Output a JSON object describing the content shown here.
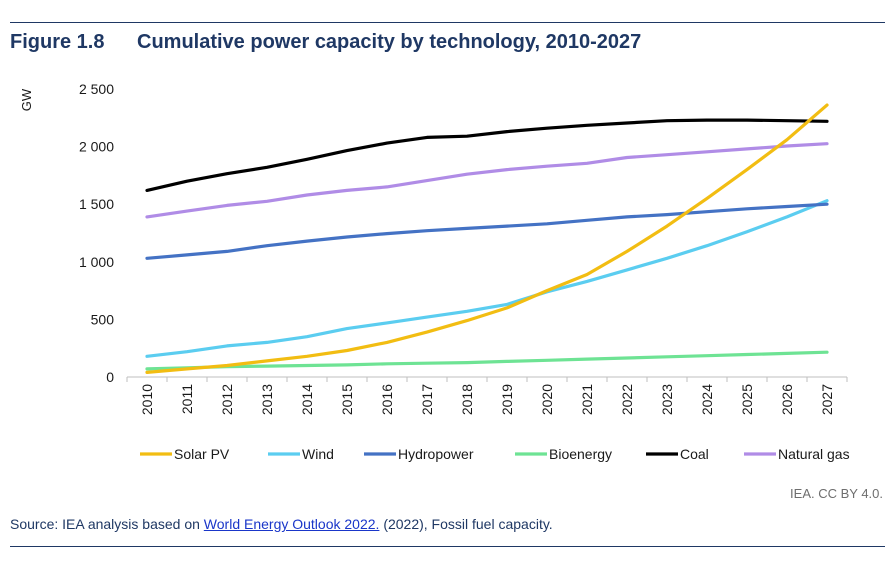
{
  "figure": {
    "number": "Figure 1.8",
    "title": "Cumulative power capacity by technology, 2010-2027"
  },
  "credit": "IEA. CC BY 4.0.",
  "source": {
    "prefix": "Source: IEA analysis based on",
    "link_text": "World Energy Outlook 2022.",
    "suffix": "(2022), Fossil fuel capacity."
  },
  "chart_data": {
    "type": "line",
    "title": "Cumulative power capacity by technology, 2010-2027",
    "xlabel": "",
    "ylabel": "GW",
    "ylim": [
      0,
      2500
    ],
    "yticks": [
      0,
      500,
      1000,
      1500,
      2000,
      2500
    ],
    "ytick_labels": [
      "0",
      "500",
      "1 000",
      "1 500",
      "2 000",
      "2 500"
    ],
    "grid": false,
    "legend_position": "bottom",
    "x": [
      "2010",
      "2011",
      "2012",
      "2013",
      "2014",
      "2015",
      "2016",
      "2017",
      "2018",
      "2019",
      "2020",
      "2021",
      "2022",
      "2023",
      "2024",
      "2025",
      "2026",
      "2027"
    ],
    "series": [
      {
        "name": "Solar PV",
        "color": "#f2bd12",
        "values": [
          40,
          70,
          100,
          140,
          180,
          230,
          300,
          390,
          490,
          600,
          750,
          890,
          1090,
          1310,
          1550,
          1800,
          2060,
          2360
        ]
      },
      {
        "name": "Wind",
        "color": "#5bcdf0",
        "values": [
          180,
          220,
          270,
          300,
          350,
          420,
          470,
          520,
          570,
          630,
          740,
          830,
          930,
          1030,
          1140,
          1260,
          1390,
          1530
        ]
      },
      {
        "name": "Hydropower",
        "color": "#4472c4",
        "values": [
          1030,
          1060,
          1090,
          1140,
          1180,
          1215,
          1245,
          1270,
          1290,
          1310,
          1330,
          1360,
          1390,
          1410,
          1435,
          1460,
          1480,
          1500
        ]
      },
      {
        "name": "Bioenergy",
        "color": "#6ee394",
        "values": [
          70,
          80,
          90,
          95,
          100,
          105,
          115,
          120,
          125,
          135,
          145,
          155,
          165,
          175,
          185,
          195,
          205,
          215
        ]
      },
      {
        "name": "Coal",
        "color": "#000000",
        "values": [
          1620,
          1700,
          1765,
          1820,
          1890,
          1965,
          2030,
          2080,
          2090,
          2130,
          2160,
          2185,
          2205,
          2225,
          2230,
          2230,
          2225,
          2220
        ]
      },
      {
        "name": "Natural gas",
        "color": "#b08ce6",
        "values": [
          1390,
          1440,
          1490,
          1525,
          1580,
          1620,
          1650,
          1705,
          1760,
          1800,
          1830,
          1855,
          1905,
          1930,
          1955,
          1980,
          2005,
          2025
        ]
      }
    ]
  }
}
